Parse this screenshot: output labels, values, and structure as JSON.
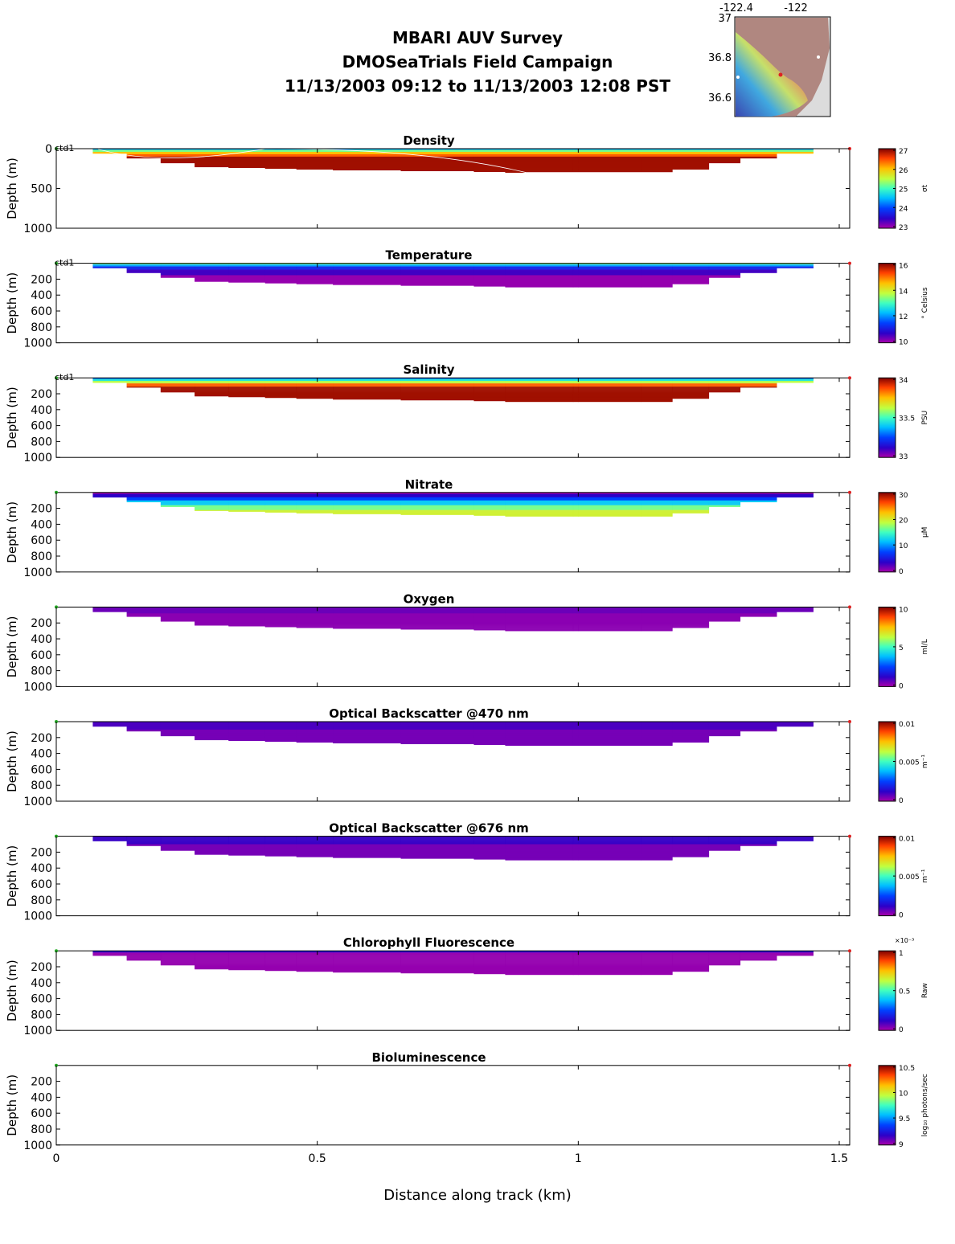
{
  "title_lines": [
    "MBARI AUV Survey",
    "DMOSeaTrials Field Campaign",
    "11/13/2003 09:12  to 11/13/2003 12:08 PST"
  ],
  "inset_map": {
    "lon_ticks": [
      "-122.4",
      "-122"
    ],
    "lat_ticks": [
      "37",
      "36.8",
      "36.6"
    ]
  },
  "shared_axes": {
    "xlabel": "Distance along track (km)",
    "ylabel": "Depth (m)",
    "xlim": [
      0,
      1.52
    ],
    "x_ticks": [
      0,
      0.5,
      1,
      1.5
    ],
    "x_tick_labels": [
      "0",
      "0.5",
      "1",
      "1.5"
    ],
    "ylim": [
      0,
      1000
    ],
    "y_reversed": true
  },
  "chart_data": [
    {
      "type": "heatmap",
      "title": "Density",
      "ylabel": "Depth (m)",
      "y_ticks": [
        "0",
        "500",
        "1000"
      ],
      "tag": "ctd1",
      "cbar_ticks": [
        "27",
        "26",
        "25",
        "24",
        "23"
      ],
      "cbar_label": "σt",
      "colormap": "jet",
      "profile": "density",
      "surface_line": true
    },
    {
      "type": "heatmap",
      "title": "Temperature",
      "ylabel": "Depth (m)",
      "y_ticks": [
        "200",
        "400",
        "600",
        "800",
        "1000"
      ],
      "tag": "ctd1",
      "cbar_ticks": [
        "16",
        "14",
        "12",
        "10"
      ],
      "cbar_label": "° Celsius",
      "colormap": "jet",
      "profile": "temperature"
    },
    {
      "type": "heatmap",
      "title": "Salinity",
      "ylabel": "Depth (m)",
      "y_ticks": [
        "200",
        "400",
        "600",
        "800",
        "1000"
      ],
      "tag": "ctd1",
      "cbar_ticks": [
        "34",
        "33.5",
        "33"
      ],
      "cbar_label": "PSU",
      "colormap": "jet",
      "profile": "salinity"
    },
    {
      "type": "heatmap",
      "title": "Nitrate",
      "ylabel": "Depth (m)",
      "y_ticks": [
        "200",
        "400",
        "600",
        "800",
        "1000"
      ],
      "tag": "",
      "cbar_ticks": [
        "30",
        "20",
        "10",
        "0"
      ],
      "cbar_label": "μM",
      "colormap": "jet",
      "profile": "nitrate"
    },
    {
      "type": "heatmap",
      "title": "Oxygen",
      "ylabel": "Depth (m)",
      "y_ticks": [
        "200",
        "400",
        "600",
        "800",
        "1000"
      ],
      "tag": "",
      "cbar_ticks": [
        "10",
        "5",
        "0"
      ],
      "cbar_label": "ml/L",
      "colormap": "jet",
      "profile": "oxygen"
    },
    {
      "type": "heatmap",
      "title": "Optical Backscatter @470 nm",
      "ylabel": "Depth (m)",
      "y_ticks": [
        "200",
        "400",
        "600",
        "800",
        "1000"
      ],
      "tag": "",
      "cbar_ticks": [
        "0.01",
        "0.005",
        "0"
      ],
      "cbar_label": "m⁻¹",
      "colormap": "jet",
      "profile": "bb470"
    },
    {
      "type": "heatmap",
      "title": "Optical Backscatter @676 nm",
      "ylabel": "Depth (m)",
      "y_ticks": [
        "200",
        "400",
        "600",
        "800",
        "1000"
      ],
      "tag": "",
      "cbar_ticks": [
        "0.01",
        "0.005",
        "0"
      ],
      "cbar_label": "m⁻¹",
      "colormap": "jet",
      "profile": "bb676"
    },
    {
      "type": "heatmap",
      "title": "Chlorophyll Fluorescence",
      "ylabel": "Depth (m)",
      "y_ticks": [
        "200",
        "400",
        "600",
        "800",
        "1000"
      ],
      "tag": "",
      "cbar_ticks": [
        "1",
        "0.5",
        "0"
      ],
      "cbar_label": "Raw",
      "cbar_exponent": "×10⁻³",
      "colormap": "jet",
      "profile": "chl"
    },
    {
      "type": "heatmap",
      "title": "Bioluminescence",
      "ylabel": "Depth (m)",
      "y_ticks": [
        "200",
        "400",
        "600",
        "800",
        "1000"
      ],
      "tag": "",
      "cbar_ticks": [
        "10.5",
        "10",
        "9.5",
        "9"
      ],
      "cbar_label": "log₁₀ photons/sec",
      "colormap": "jet",
      "profile": "empty"
    }
  ],
  "section_envelope": {
    "x_km": [
      0.07,
      0.135,
      0.2,
      0.265,
      0.33,
      0.4,
      0.46,
      0.53,
      0.66,
      0.8,
      0.86,
      0.99,
      1.0,
      1.12,
      1.18,
      1.25,
      1.31,
      1.38,
      1.45
    ],
    "max_depth_m": [
      60,
      120,
      180,
      230,
      240,
      250,
      260,
      270,
      280,
      290,
      300,
      300,
      300,
      300,
      260,
      180,
      120,
      60,
      60
    ]
  },
  "colors": {
    "track_start": "#22aa22",
    "track_end": "#dd2222",
    "surface_line": "#ffffff"
  }
}
